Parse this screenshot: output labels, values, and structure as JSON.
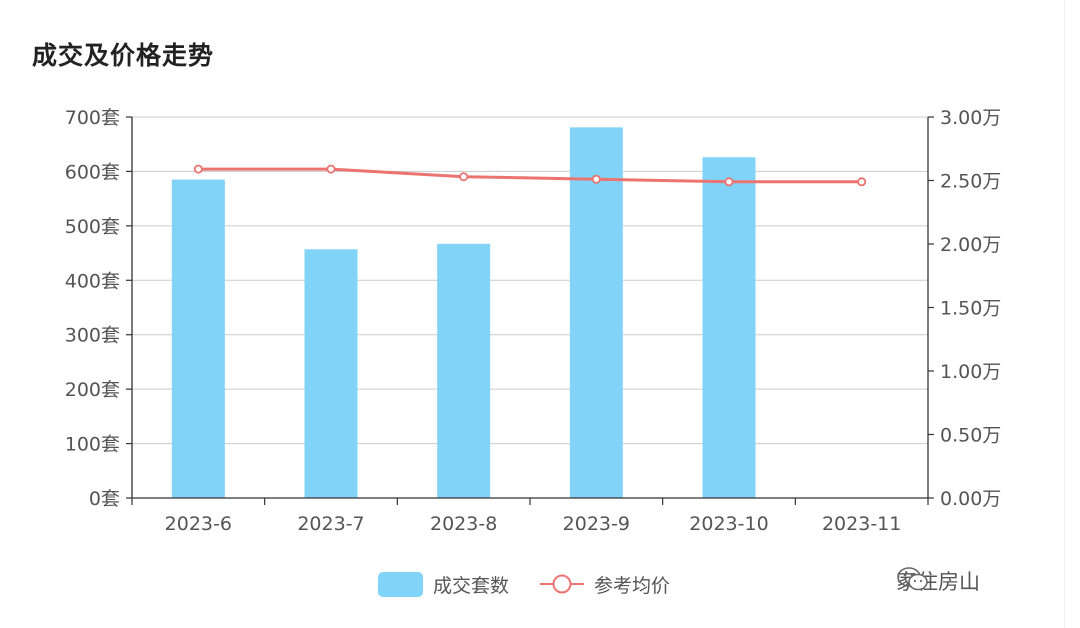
{
  "header": {
    "title": "成交及价格走势"
  },
  "watermark": {
    "icon": "wechat-icon",
    "text": "家住房山"
  },
  "colors": {
    "bar": "#81D3F8",
    "line": "#EC7470",
    "grid": "#CCCCCC",
    "axis": "#333333"
  },
  "chart_data": {
    "type": "bar+line",
    "title": "成交及价格走势",
    "categories": [
      "2023-6",
      "2023-7",
      "2023-8",
      "2023-9",
      "2023-10",
      "2023-11"
    ],
    "series": [
      {
        "name": "成交套数",
        "type": "bar",
        "axis": "left",
        "values": [
          585,
          457,
          467,
          681,
          626,
          null
        ]
      },
      {
        "name": "参考均价",
        "type": "line",
        "axis": "right",
        "values": [
          25900,
          25900,
          25300,
          25100,
          24900,
          24900
        ]
      }
    ],
    "y_left": {
      "range": [
        0,
        700
      ],
      "ticks": [
        0,
        100,
        200,
        300,
        400,
        500,
        600,
        700
      ],
      "tick_labels": [
        "0套",
        "100套",
        "200套",
        "300套",
        "400套",
        "500套",
        "600套",
        "700套"
      ]
    },
    "y_right": {
      "range": [
        0,
        30000
      ],
      "ticks": [
        0,
        5000,
        10000,
        15000,
        20000,
        25000,
        30000
      ],
      "tick_labels": [
        "0.00万",
        "0.50万",
        "1.00万",
        "1.50万",
        "2.00万",
        "2.50万",
        "3.00万"
      ]
    },
    "grid": true,
    "legend": {
      "position": "bottom",
      "items": [
        "成交套数",
        "参考均价"
      ]
    }
  }
}
